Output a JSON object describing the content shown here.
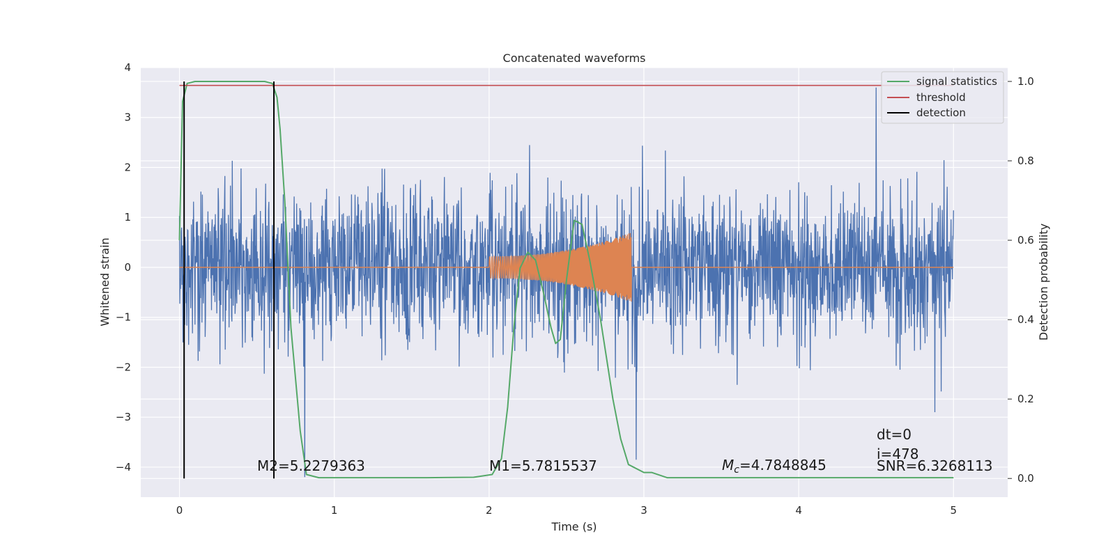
{
  "chart_data": {
    "type": "line",
    "title": "Concatenated waveforms",
    "xlabel": "Time (s)",
    "ylabel": "Whitened strain",
    "ylabel_right": "Detection probability",
    "xlim": [
      -0.25,
      5.35
    ],
    "ylim": [
      -4.6,
      4.0
    ],
    "ylim_right": [
      -0.047,
      1.035
    ],
    "xticks": [
      0,
      1,
      2,
      3,
      4,
      5
    ],
    "yticks": [
      -4,
      -3,
      -2,
      -1,
      0,
      1,
      2,
      3,
      4
    ],
    "yticks_right": [
      0.0,
      0.2,
      0.4,
      0.6,
      0.8,
      1.0
    ],
    "xtick_labels": [
      "0",
      "1",
      "2",
      "3",
      "4",
      "5"
    ],
    "ytick_labels": [
      "−4",
      "−3",
      "−2",
      "−1",
      "0",
      "1",
      "2",
      "3",
      "4"
    ],
    "ytick_right_labels": [
      "0.0",
      "0.2",
      "0.4",
      "0.6",
      "0.8",
      "1.0"
    ],
    "grid": true,
    "legend_position": "top-right",
    "strain": {
      "x_start": 0,
      "x_end": 5,
      "n_points": 2200,
      "typical_range": [
        -2.6,
        2.6
      ],
      "extremes": [
        [
          4.5,
          3.6
        ],
        [
          0.81,
          -4.2
        ],
        [
          2.95,
          -3.85
        ],
        [
          4.88,
          -2.9
        ]
      ],
      "color": "#4c72b0"
    },
    "injected_waveform": {
      "x_start": 2.0,
      "x_end": 2.92,
      "amplitude_start": 0.22,
      "amplitude_end": 0.7,
      "color": "#dd8452"
    },
    "series": [
      {
        "name": "signal statistics",
        "axis": "right",
        "color": "#55a868",
        "x": [
          0.0,
          0.02,
          0.05,
          0.1,
          0.3,
          0.55,
          0.6,
          0.63,
          0.65,
          0.68,
          0.72,
          0.78,
          0.82,
          0.9,
          1.2,
          1.6,
          1.9,
          2.02,
          2.08,
          2.12,
          2.16,
          2.2,
          2.25,
          2.3,
          2.35,
          2.4,
          2.43,
          2.46,
          2.5,
          2.55,
          2.6,
          2.65,
          2.72,
          2.8,
          2.85,
          2.9,
          3.0,
          3.05,
          3.15,
          3.3,
          4.0,
          5.0
        ],
        "values": [
          0.6,
          0.95,
          0.995,
          1.0,
          1.0,
          1.0,
          0.995,
          0.96,
          0.88,
          0.7,
          0.38,
          0.12,
          0.01,
          0.002,
          0.002,
          0.002,
          0.003,
          0.01,
          0.05,
          0.18,
          0.38,
          0.53,
          0.57,
          0.55,
          0.47,
          0.38,
          0.34,
          0.35,
          0.5,
          0.65,
          0.64,
          0.55,
          0.4,
          0.2,
          0.1,
          0.035,
          0.015,
          0.015,
          0.002,
          0.002,
          0.002,
          0.002
        ]
      },
      {
        "name": "threshold",
        "axis": "right",
        "color": "#c44e52",
        "x": [
          0.0,
          5.0
        ],
        "values": [
          0.99,
          0.99
        ]
      },
      {
        "name": "detection",
        "axis": "right",
        "color": "#000000",
        "vlines": [
          0.03,
          0.61
        ],
        "range": [
          0.0,
          1.0
        ]
      }
    ],
    "annotations": {
      "m2": "M2=5.2279363",
      "m1": "M1=5.7815537",
      "mc_symbol": "M",
      "mc_sub": "c",
      "mc_value": "=4.7848845",
      "dt": "dt=0",
      "i": "i=478",
      "snr": "SNR=6.3268113"
    }
  }
}
